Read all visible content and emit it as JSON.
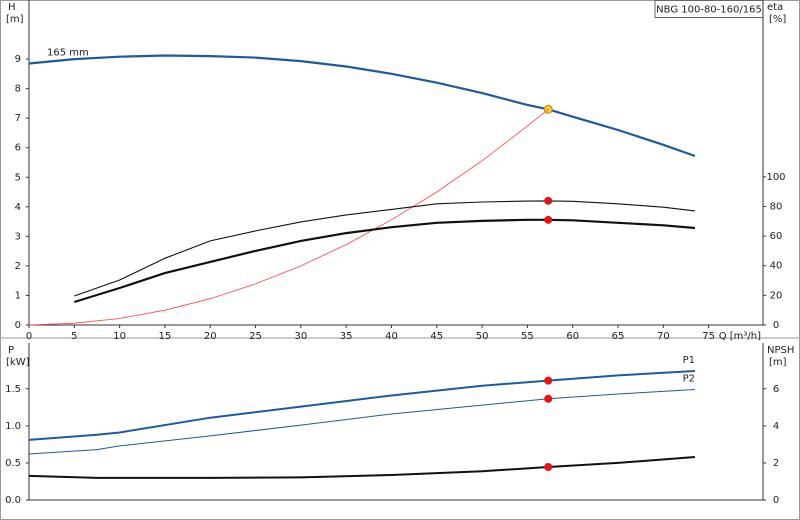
{
  "chart_data": [
    {
      "type": "line",
      "title": "NBG 100-80-160/165",
      "xlabel": "Q [m³/h]",
      "ylabel": "H",
      "yunit": "[m]",
      "y2label": "eta",
      "y2unit": "[%]",
      "grid": false,
      "operating_point": 57.3,
      "xlim": [
        0,
        81
      ],
      "xticks": [
        0,
        5,
        10,
        15,
        20,
        25,
        30,
        35,
        40,
        45,
        50,
        55,
        60,
        65,
        70,
        75
      ],
      "ylim": [
        0,
        10.83
      ],
      "yticks": [
        0,
        1,
        2,
        3,
        4,
        5,
        6,
        7,
        8,
        9
      ],
      "y2lim": [
        0,
        216
      ],
      "y2ticks": [
        0,
        20,
        40,
        60,
        80,
        100
      ],
      "x": [
        0,
        5,
        10,
        15,
        20,
        25,
        30,
        35,
        40,
        45,
        50,
        55,
        57.3,
        60,
        65,
        70,
        73.5
      ],
      "series": [
        {
          "name": "165 mm",
          "color": "#1f5a9e",
          "line_width": 2.2,
          "marker_color": "#ffcc33",
          "values": [
            8.85,
            9.0,
            9.08,
            9.12,
            9.1,
            9.05,
            8.93,
            8.75,
            8.5,
            8.2,
            7.85,
            7.45,
            7.3,
            7.05,
            6.6,
            6.1,
            5.72
          ]
        },
        {
          "color": "#ff4444",
          "line_width": 0.8,
          "values": [
            0,
            0.06,
            0.22,
            0.5,
            0.89,
            1.39,
            2.0,
            2.72,
            3.56,
            4.5,
            5.56,
            6.73,
            7.3,
            null,
            null,
            null,
            null
          ]
        },
        {
          "color": "#111111",
          "line_width": 1.1,
          "axis": "y2",
          "marker_color": "#ee1111",
          "values": [
            null,
            19.6,
            30.4,
            45,
            56.8,
            63.5,
            69.6,
            74.3,
            78,
            81.8,
            83,
            83.6,
            83.8,
            83.5,
            81.8,
            79.5,
            77
          ]
        },
        {
          "color": "#111111",
          "line_width": 2.2,
          "axis": "y2",
          "marker_color": "#ee1111",
          "values": [
            null,
            15.5,
            25,
            35,
            42.6,
            50,
            56.8,
            62,
            66,
            69,
            70.3,
            71,
            71,
            70.7,
            69,
            67.3,
            65.5
          ]
        }
      ]
    },
    {
      "type": "line",
      "ylabel": "P",
      "yunit": "[kW]",
      "y2label": "NPSH",
      "y2unit": "[m]",
      "grid": false,
      "operating_point": 57.3,
      "xlim": [
        0,
        81
      ],
      "ylim": [
        0,
        2.05
      ],
      "yticks": [
        {
          "value": 0,
          "label": "0.0"
        },
        0.5,
        {
          "value": 1,
          "label": "1.0"
        },
        1.5
      ],
      "y2lim": [
        0,
        8.2
      ],
      "y2ticks": [
        0,
        2,
        4,
        6
      ],
      "x": [
        0,
        7.5,
        10,
        20,
        30,
        40,
        50,
        57.3,
        65,
        73.5
      ],
      "series": [
        {
          "name": "P1",
          "color": "#1f5a9e",
          "line_width": 2,
          "marker_color": "#ee1111",
          "values": [
            0.81,
            0.88,
            0.91,
            1.11,
            1.26,
            1.41,
            1.54,
            1.61,
            1.68,
            1.74
          ]
        },
        {
          "name": "P2",
          "color": "#1f5a9e",
          "line_width": 1,
          "marker_color": "#ee1111",
          "values": [
            0.62,
            0.68,
            0.73,
            0.865,
            1.01,
            1.16,
            1.28,
            1.365,
            1.43,
            1.49
          ]
        },
        {
          "color": "#111111",
          "line_width": 2,
          "axis": "y2",
          "marker_color": "#ee1111",
          "values": [
            1.3,
            1.19,
            1.19,
            1.19,
            1.22,
            1.35,
            1.55,
            1.78,
            2.0,
            2.32
          ]
        }
      ]
    }
  ]
}
